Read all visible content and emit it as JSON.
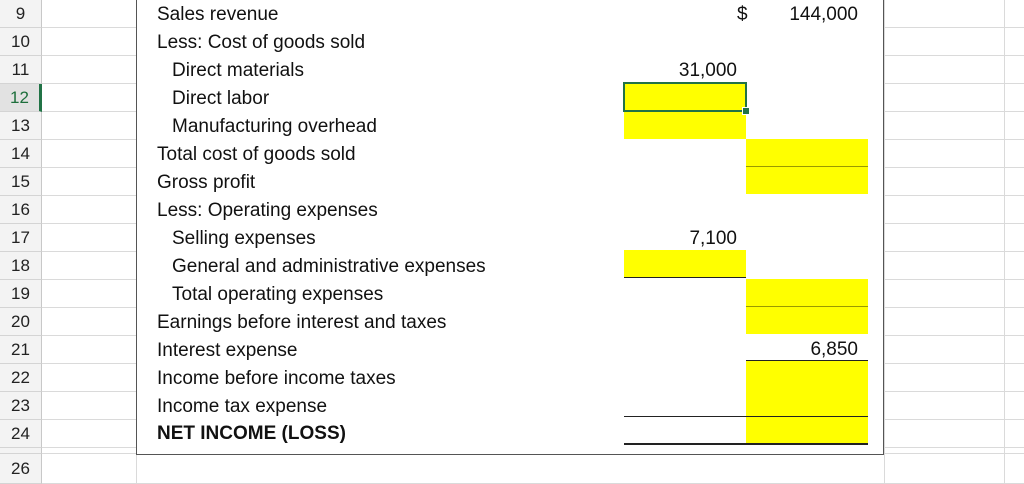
{
  "row_numbers": [
    "9",
    "10",
    "11",
    "12",
    "13",
    "14",
    "15",
    "16",
    "17",
    "18",
    "19",
    "20",
    "21",
    "22",
    "23",
    "24",
    "26"
  ],
  "statement": {
    "sales_revenue": "Sales revenue",
    "less_cogs": "Less: Cost of goods sold",
    "direct_materials": "Direct materials",
    "direct_labor": "Direct labor",
    "manufacturing_overhead": "Manufacturing overhead",
    "total_cogs": "Total cost of goods sold",
    "gross_profit": "Gross profit",
    "less_operating": "Less: Operating expenses",
    "selling_expenses": "Selling expenses",
    "general_admin": "General and administrative expenses",
    "total_operating": "Total operating expenses",
    "ebit": "Earnings before interest and taxes",
    "interest_expense": "Interest expense",
    "income_before_taxes": "Income before income taxes",
    "income_tax_expense": "Income tax expense",
    "net_income": "NET INCOME (LOSS)"
  },
  "values": {
    "currency_symbol": "$",
    "sales_revenue": "144,000",
    "direct_materials": "31,000",
    "selling_expenses": "7,100",
    "interest_expense": "6,850"
  },
  "colors": {
    "input_fill": "#ffff00",
    "selection": "#217346"
  }
}
